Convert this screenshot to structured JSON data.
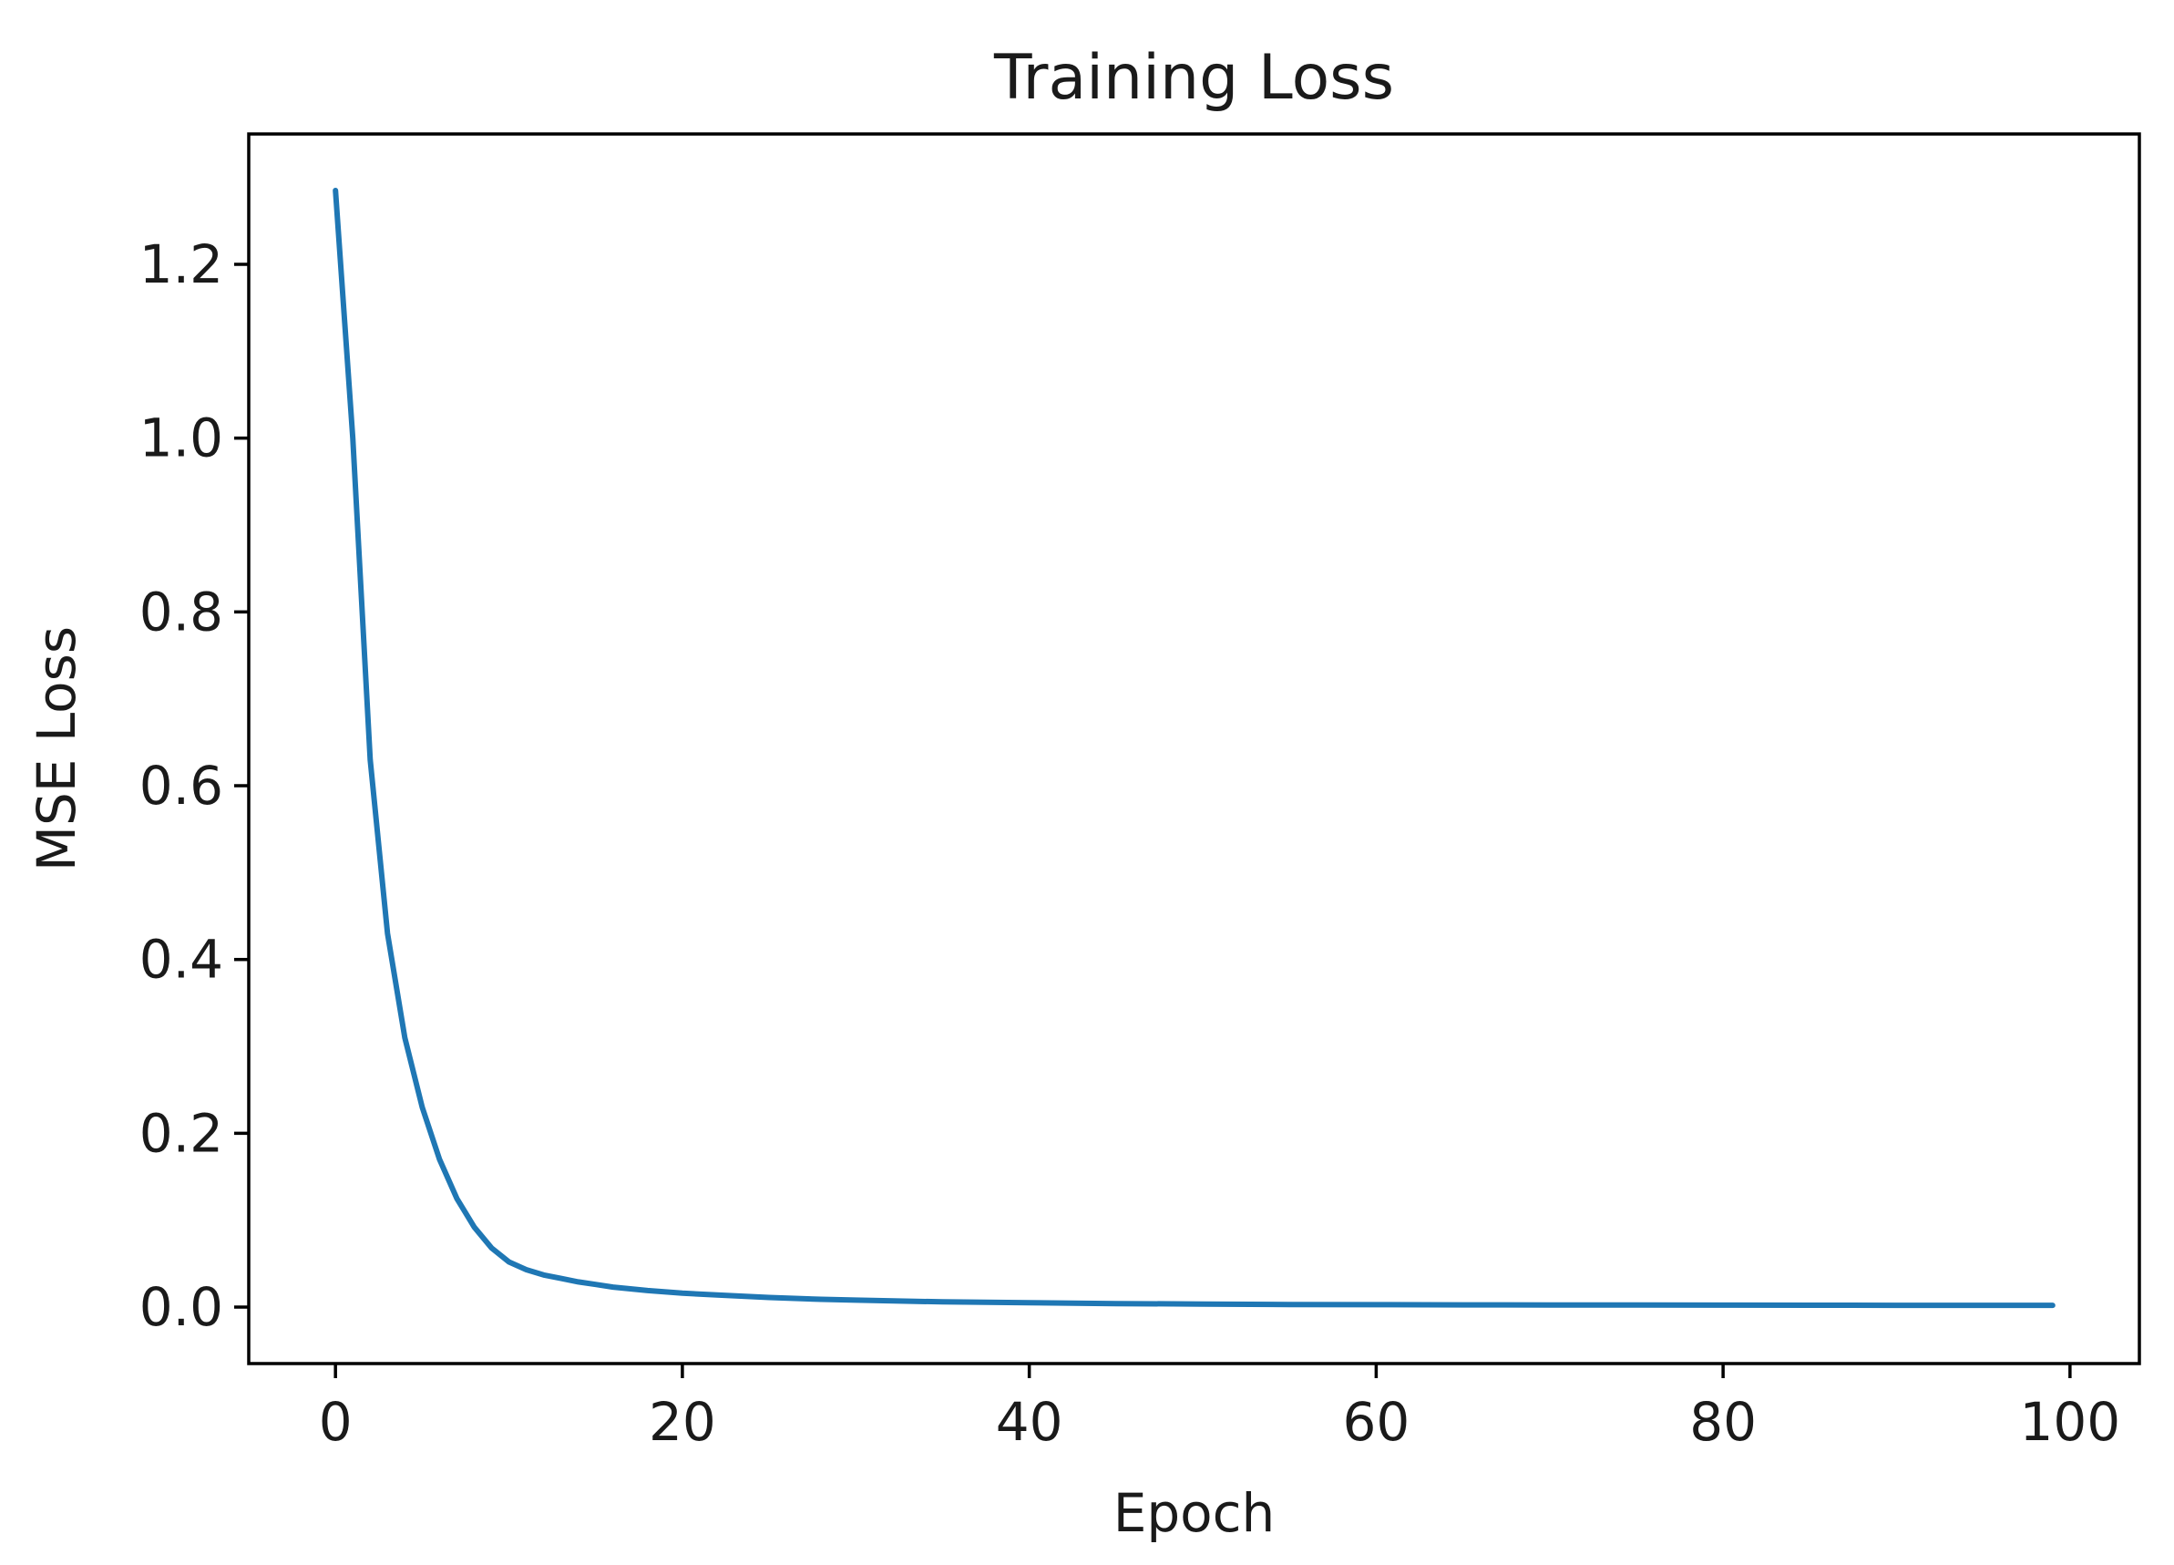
{
  "chart_data": {
    "type": "line",
    "title": "Training Loss",
    "xlabel": "Epoch",
    "ylabel": "MSE Loss",
    "xlim": [
      -5,
      104
    ],
    "ylim": [
      -0.065,
      1.35
    ],
    "xticks": [
      0,
      20,
      40,
      60,
      80,
      100
    ],
    "xtick_labels": [
      "0",
      "20",
      "40",
      "60",
      "80",
      "100"
    ],
    "yticks": [
      0.0,
      0.2,
      0.4,
      0.6,
      0.8,
      1.0,
      1.2
    ],
    "ytick_labels": [
      "0.0",
      "0.2",
      "0.4",
      "0.6",
      "0.8",
      "1.0",
      "1.2"
    ],
    "grid": false,
    "legend": "none",
    "series": [
      {
        "color": "#1f77b4",
        "x": [
          0,
          1,
          2,
          3,
          4,
          5,
          6,
          7,
          8,
          9,
          10,
          11,
          12,
          13,
          14,
          15,
          16,
          18,
          20,
          22,
          25,
          28,
          30,
          35,
          40,
          45,
          50,
          55,
          60,
          65,
          70,
          75,
          80,
          85,
          90,
          95,
          99
        ],
        "y": [
          1.285,
          1.0,
          0.63,
          0.43,
          0.31,
          0.23,
          0.17,
          0.125,
          0.092,
          0.068,
          0.052,
          0.043,
          0.037,
          0.033,
          0.029,
          0.026,
          0.023,
          0.019,
          0.016,
          0.014,
          0.011,
          0.009,
          0.008,
          0.006,
          0.005,
          0.004,
          0.0035,
          0.003,
          0.0028,
          0.0026,
          0.0024,
          0.0023,
          0.0022,
          0.0021,
          0.002,
          0.002,
          0.002
        ]
      }
    ]
  }
}
